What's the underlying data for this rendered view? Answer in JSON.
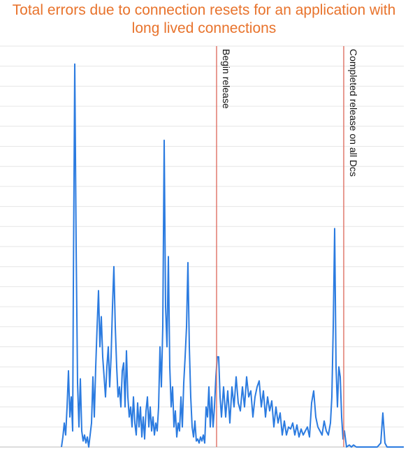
{
  "chart_data": {
    "type": "line",
    "title": "Total errors due to connection resets for an application with long lived connections",
    "x": [
      88,
      90,
      92,
      94,
      96,
      98,
      100,
      102,
      104,
      105,
      107,
      109,
      111,
      113,
      115,
      117,
      119,
      121,
      123,
      125,
      127,
      131,
      133,
      135,
      137,
      139,
      141,
      143,
      145,
      147,
      149,
      151,
      153,
      155,
      157,
      159,
      161,
      163,
      165,
      167,
      169,
      171,
      173,
      175,
      177,
      179,
      181,
      183,
      185,
      187,
      189,
      191,
      193,
      195,
      197,
      199,
      201,
      203,
      205,
      207,
      209,
      211,
      213,
      215,
      217,
      219,
      221,
      223,
      225,
      227,
      229,
      231,
      233,
      235,
      237,
      239,
      241,
      243,
      245,
      247,
      249,
      251,
      253,
      255,
      257,
      259,
      261,
      263,
      265,
      267,
      269,
      271,
      273,
      275,
      277,
      279,
      281,
      283,
      285,
      287,
      289,
      291,
      293,
      295,
      297,
      299,
      301,
      303,
      305,
      307,
      309,
      311,
      313,
      315,
      317,
      320,
      323,
      326,
      329,
      332,
      335,
      338,
      341,
      344,
      347,
      350,
      353,
      356,
      359,
      362,
      365,
      368,
      371,
      374,
      377,
      380,
      383,
      386,
      389,
      392,
      395,
      398,
      401,
      404,
      407,
      410,
      413,
      416,
      419,
      422,
      425,
      428,
      431,
      434,
      437,
      440,
      443,
      446,
      449,
      452,
      455,
      458,
      461,
      464,
      467,
      470,
      473,
      475,
      477,
      479,
      481,
      483,
      485,
      487,
      489,
      491,
      493,
      496,
      500,
      503,
      506,
      510,
      520,
      530,
      540,
      545,
      548,
      551,
      554,
      578
    ],
    "series": [
      {
        "color": "#2b7be0",
        "values": [
          0,
          0.5,
          1.2,
          0.6,
          2.0,
          3.8,
          1.5,
          2.5,
          0.8,
          8,
          19.1,
          10,
          3.2,
          1.0,
          3.4,
          0.8,
          0.3,
          0.6,
          0.2,
          0.5,
          0,
          1.2,
          3.5,
          1.5,
          4.0,
          6.0,
          7.8,
          5.0,
          6.5,
          4.5,
          3.5,
          2.5,
          4.0,
          5.0,
          3.0,
          4.5,
          7.0,
          9.0,
          6.0,
          4.0,
          2.5,
          3.0,
          2.0,
          3.8,
          4.2,
          2.0,
          4.8,
          2.5,
          1.5,
          2.0,
          1.0,
          2.5,
          1.2,
          0.6,
          2.2,
          1.0,
          2.0,
          0.5,
          1.5,
          0.4,
          1.8,
          2.5,
          1.0,
          2.0,
          0.8,
          1.5,
          0.6,
          1.2,
          0.8,
          2.0,
          5.0,
          3.0,
          6.0,
          15.3,
          7.0,
          5.0,
          9.5,
          4.0,
          2.0,
          3.0,
          1.0,
          1.8,
          0.5,
          1.2,
          0.8,
          2.5,
          1.0,
          3.2,
          4.5,
          6.0,
          9.2,
          5.0,
          2.5,
          1.0,
          0.5,
          1.3,
          0.3,
          0.4,
          0.2,
          0.5,
          0.3,
          0.6,
          0.2,
          2.0,
          1.5,
          3.0,
          1.0,
          2.5,
          1.0,
          2.0,
          3.5,
          4.5,
          4.5,
          2.5,
          1.5,
          3.0,
          1.5,
          2.8,
          1.2,
          3.0,
          2.0,
          3.5,
          2.2,
          1.8,
          3.0,
          2.0,
          3.5,
          2.5,
          2.8,
          1.5,
          2.5,
          3.0,
          3.3,
          2.0,
          2.8,
          1.5,
          2.5,
          1.8,
          2.3,
          1.0,
          2.0,
          1.2,
          1.7,
          0.6,
          1.3,
          0.6,
          1.0,
          0.9,
          1.2,
          0.6,
          1.1,
          0.5,
          0.9,
          0.6,
          0.8,
          1.0,
          0.5,
          2.2,
          2.8,
          1.5,
          1.0,
          0.8,
          0.6,
          1.3,
          0.8,
          0.6,
          1.2,
          2.5,
          6.0,
          10.9,
          4.0,
          2.0,
          4.0,
          3.5,
          1.5,
          0.4,
          0.8,
          0,
          0.1,
          0,
          0.1,
          0,
          0,
          0,
          0,
          0.2,
          1.7,
          0.2,
          0,
          0
        ]
      }
    ],
    "xlim": [
      0,
      578
    ],
    "ylim": [
      0,
      20
    ],
    "yticks": [
      0,
      1,
      2,
      3,
      4,
      5,
      6,
      7,
      8,
      9,
      10,
      11,
      12,
      13,
      14,
      15,
      16,
      17,
      18,
      19,
      20
    ],
    "grid": true,
    "annotations": [
      {
        "x": 310,
        "text": "Begin release",
        "color": "#e07a6e"
      },
      {
        "x": 492,
        "text": "Completed release on all Dcs",
        "color": "#e07a6e"
      }
    ]
  }
}
